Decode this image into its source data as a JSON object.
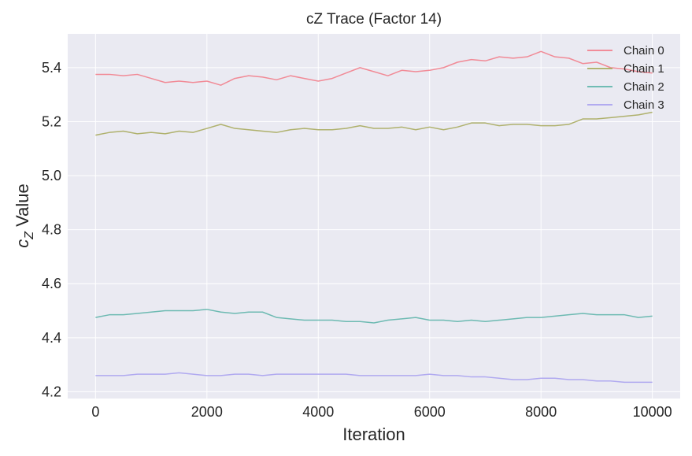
{
  "chart_data": {
    "type": "line",
    "title": "cZ Trace (Factor 14)",
    "xlabel": "Iteration",
    "ylabel_main": "c",
    "ylabel_sub": "Z",
    "ylabel_rest": " Value",
    "xlim": [
      -500,
      10500
    ],
    "ylim": [
      4.175,
      5.525
    ],
    "xticks": [
      0,
      2000,
      4000,
      6000,
      8000,
      10000
    ],
    "xtick_labels": [
      "0",
      "2000",
      "4000",
      "6000",
      "8000",
      "10000"
    ],
    "yticks": [
      4.2,
      4.4,
      4.6,
      4.8,
      5.0,
      5.2,
      5.4
    ],
    "ytick_labels": [
      "4.2",
      "4.4",
      "4.6",
      "4.8",
      "5.0",
      "5.2",
      "5.4"
    ],
    "grid": true,
    "legend_position": "top-right",
    "background": "#eaeaf2",
    "series": [
      {
        "name": "Chain 0",
        "color": "#f27f8c",
        "x": [
          0,
          250,
          500,
          750,
          1000,
          1250,
          1500,
          1750,
          2000,
          2250,
          2500,
          2750,
          3000,
          3250,
          3500,
          3750,
          4000,
          4250,
          4500,
          4750,
          5000,
          5250,
          5500,
          5750,
          6000,
          6250,
          6500,
          6750,
          7000,
          7250,
          7500,
          7750,
          8000,
          8250,
          8500,
          8750,
          9000,
          9250,
          9500,
          9750,
          10000
        ],
        "values": [
          5.375,
          5.375,
          5.37,
          5.375,
          5.36,
          5.345,
          5.35,
          5.345,
          5.35,
          5.335,
          5.36,
          5.37,
          5.365,
          5.355,
          5.37,
          5.36,
          5.35,
          5.36,
          5.38,
          5.4,
          5.385,
          5.37,
          5.39,
          5.385,
          5.39,
          5.4,
          5.42,
          5.43,
          5.425,
          5.44,
          5.435,
          5.44,
          5.46,
          5.44,
          5.435,
          5.415,
          5.42,
          5.4,
          5.395,
          5.385,
          5.38
        ]
      },
      {
        "name": "Chain 1",
        "color": "#a8ab5e",
        "x": [
          0,
          250,
          500,
          750,
          1000,
          1250,
          1500,
          1750,
          2000,
          2250,
          2500,
          2750,
          3000,
          3250,
          3500,
          3750,
          4000,
          4250,
          4500,
          4750,
          5000,
          5250,
          5500,
          5750,
          6000,
          6250,
          6500,
          6750,
          7000,
          7250,
          7500,
          7750,
          8000,
          8250,
          8500,
          8750,
          9000,
          9250,
          9500,
          9750,
          10000
        ],
        "values": [
          5.15,
          5.16,
          5.165,
          5.155,
          5.16,
          5.155,
          5.165,
          5.16,
          5.175,
          5.19,
          5.175,
          5.17,
          5.165,
          5.16,
          5.17,
          5.175,
          5.17,
          5.17,
          5.175,
          5.185,
          5.175,
          5.175,
          5.18,
          5.17,
          5.18,
          5.17,
          5.18,
          5.195,
          5.195,
          5.185,
          5.19,
          5.19,
          5.185,
          5.185,
          5.19,
          5.21,
          5.21,
          5.215,
          5.22,
          5.225,
          5.235
        ]
      },
      {
        "name": "Chain 2",
        "color": "#5fb5ab",
        "x": [
          0,
          250,
          500,
          750,
          1000,
          1250,
          1500,
          1750,
          2000,
          2250,
          2500,
          2750,
          3000,
          3250,
          3500,
          3750,
          4000,
          4250,
          4500,
          4750,
          5000,
          5250,
          5500,
          5750,
          6000,
          6250,
          6500,
          6750,
          7000,
          7250,
          7500,
          7750,
          8000,
          8250,
          8500,
          8750,
          9000,
          9250,
          9500,
          9750,
          10000
        ],
        "values": [
          4.475,
          4.485,
          4.485,
          4.49,
          4.495,
          4.5,
          4.5,
          4.5,
          4.505,
          4.495,
          4.49,
          4.495,
          4.495,
          4.475,
          4.47,
          4.465,
          4.465,
          4.465,
          4.46,
          4.46,
          4.455,
          4.465,
          4.47,
          4.475,
          4.465,
          4.465,
          4.46,
          4.465,
          4.46,
          4.465,
          4.47,
          4.475,
          4.475,
          4.48,
          4.485,
          4.49,
          4.485,
          4.485,
          4.485,
          4.475,
          4.48
        ]
      },
      {
        "name": "Chain 3",
        "color": "#aaa2f0",
        "x": [
          0,
          250,
          500,
          750,
          1000,
          1250,
          1500,
          1750,
          2000,
          2250,
          2500,
          2750,
          3000,
          3250,
          3500,
          3750,
          4000,
          4250,
          4500,
          4750,
          5000,
          5250,
          5500,
          5750,
          6000,
          6250,
          6500,
          6750,
          7000,
          7250,
          7500,
          7750,
          8000,
          8250,
          8500,
          8750,
          9000,
          9250,
          9500,
          9750,
          10000
        ],
        "values": [
          4.26,
          4.26,
          4.26,
          4.265,
          4.265,
          4.265,
          4.27,
          4.265,
          4.26,
          4.26,
          4.265,
          4.265,
          4.26,
          4.265,
          4.265,
          4.265,
          4.265,
          4.265,
          4.265,
          4.26,
          4.26,
          4.26,
          4.26,
          4.26,
          4.265,
          4.26,
          4.26,
          4.255,
          4.255,
          4.25,
          4.245,
          4.245,
          4.25,
          4.25,
          4.245,
          4.245,
          4.24,
          4.24,
          4.235,
          4.235,
          4.235
        ]
      }
    ]
  }
}
